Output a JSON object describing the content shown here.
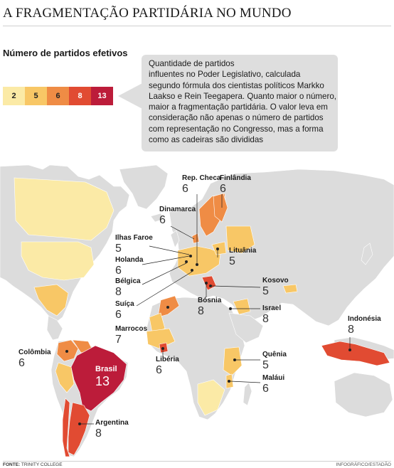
{
  "title": "A FRAGMENTAÇÃO PARTIDÁRIA NO MUNDO",
  "subtitle": "Número de partidos efetivos",
  "legend": [
    {
      "label": "2",
      "color": "#fbeaa6"
    },
    {
      "label": "5",
      "color": "#f8c766"
    },
    {
      "label": "6",
      "color": "#ef8c45"
    },
    {
      "label": "8",
      "color": "#e14b32"
    },
    {
      "label": "13",
      "color": "#bc1c3a"
    }
  ],
  "note_lines": [
    "Quantidade de partidos",
    "influentes no Poder Legislativo, calculada",
    "segundo fórmula dos cientistas políticos Markko",
    "Laakso e Rein Teegapera. Quanto maior o número,",
    "maior a fragmentação partidária. O valor leva em",
    "consideração não apenas o número de partidos",
    "com representação no Congresso, mas a forma",
    "como as cadeiras são divididas"
  ],
  "map_colors": {
    "ocean": "#ffffff",
    "land_default": "#dcdcdc",
    "borders": "#ffffff"
  },
  "countries": [
    {
      "id": "rep-checa",
      "name": "Rep. Checa",
      "value": "6"
    },
    {
      "id": "finlandia",
      "name": "Finlândia",
      "value": "6"
    },
    {
      "id": "dinamarca",
      "name": "Dinamarca",
      "value": "6"
    },
    {
      "id": "ilhas-faroe",
      "name": "Ilhas Faroe",
      "value": "5"
    },
    {
      "id": "lituania",
      "name": "Lituânia",
      "value": "5"
    },
    {
      "id": "holanda",
      "name": "Holanda",
      "value": "6"
    },
    {
      "id": "belgica",
      "name": "Bélgica",
      "value": "8"
    },
    {
      "id": "kosovo",
      "name": "Kosovo",
      "value": "5"
    },
    {
      "id": "suica",
      "name": "Suíça",
      "value": "6"
    },
    {
      "id": "bosnia",
      "name": "Bósnia",
      "value": "8"
    },
    {
      "id": "israel",
      "name": "Israel",
      "value": "8"
    },
    {
      "id": "marrocos",
      "name": "Marrocos",
      "value": "7"
    },
    {
      "id": "indonesia",
      "name": "Indonésia",
      "value": "8"
    },
    {
      "id": "colombia",
      "name": "Colômbia",
      "value": "6"
    },
    {
      "id": "quenia",
      "name": "Quênia",
      "value": "5"
    },
    {
      "id": "liberia",
      "name": "Libéria",
      "value": "6"
    },
    {
      "id": "brasil",
      "name": "Brasil",
      "value": "13"
    },
    {
      "id": "malaui",
      "name": "Maláui",
      "value": "6"
    },
    {
      "id": "argentina",
      "name": "Argentina",
      "value": "8"
    }
  ],
  "source_label": "FONTE:",
  "source": "TRINITY COLLEGE",
  "credit": "INFOGRÁFICO/ESTADÃO"
}
